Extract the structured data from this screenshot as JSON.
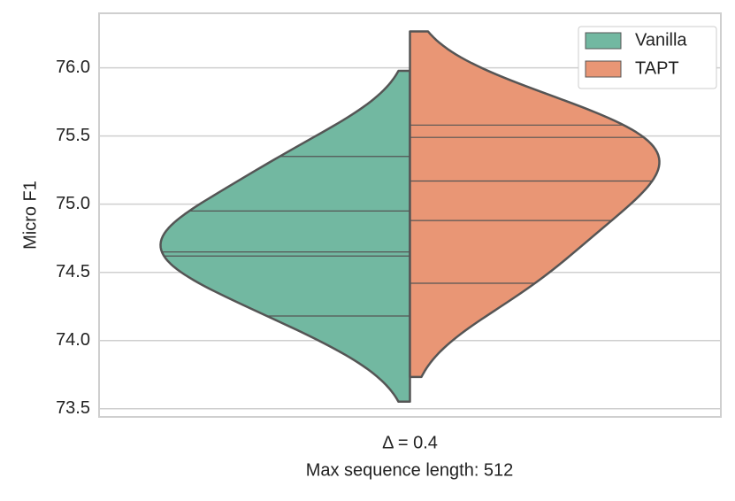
{
  "chart_data": {
    "type": "violin",
    "ylabel": "Micro F1",
    "xlabel": "Max sequence length: 512",
    "categories": [
      "Δ = 0.4"
    ],
    "series": [
      {
        "name": "Vanilla",
        "color": "#72b8a1",
        "values": [
          74.18,
          74.62,
          74.65,
          74.95,
          75.35
        ]
      },
      {
        "name": "TAPT",
        "color": "#e99675",
        "values": [
          74.42,
          74.88,
          75.17,
          75.49,
          75.58
        ]
      }
    ],
    "ylim": [
      73.44,
      76.4
    ],
    "yticks": [
      {
        "value": 73.5,
        "label": "73.5"
      },
      {
        "value": 74,
        "label": "74.0"
      },
      {
        "value": 74.5,
        "label": "74.5"
      },
      {
        "value": 75,
        "label": "75.0"
      },
      {
        "value": 75.5,
        "label": "75.5"
      },
      {
        "value": 76,
        "label": "76.0"
      }
    ],
    "grid": true,
    "split": true,
    "legend": "upper right"
  }
}
